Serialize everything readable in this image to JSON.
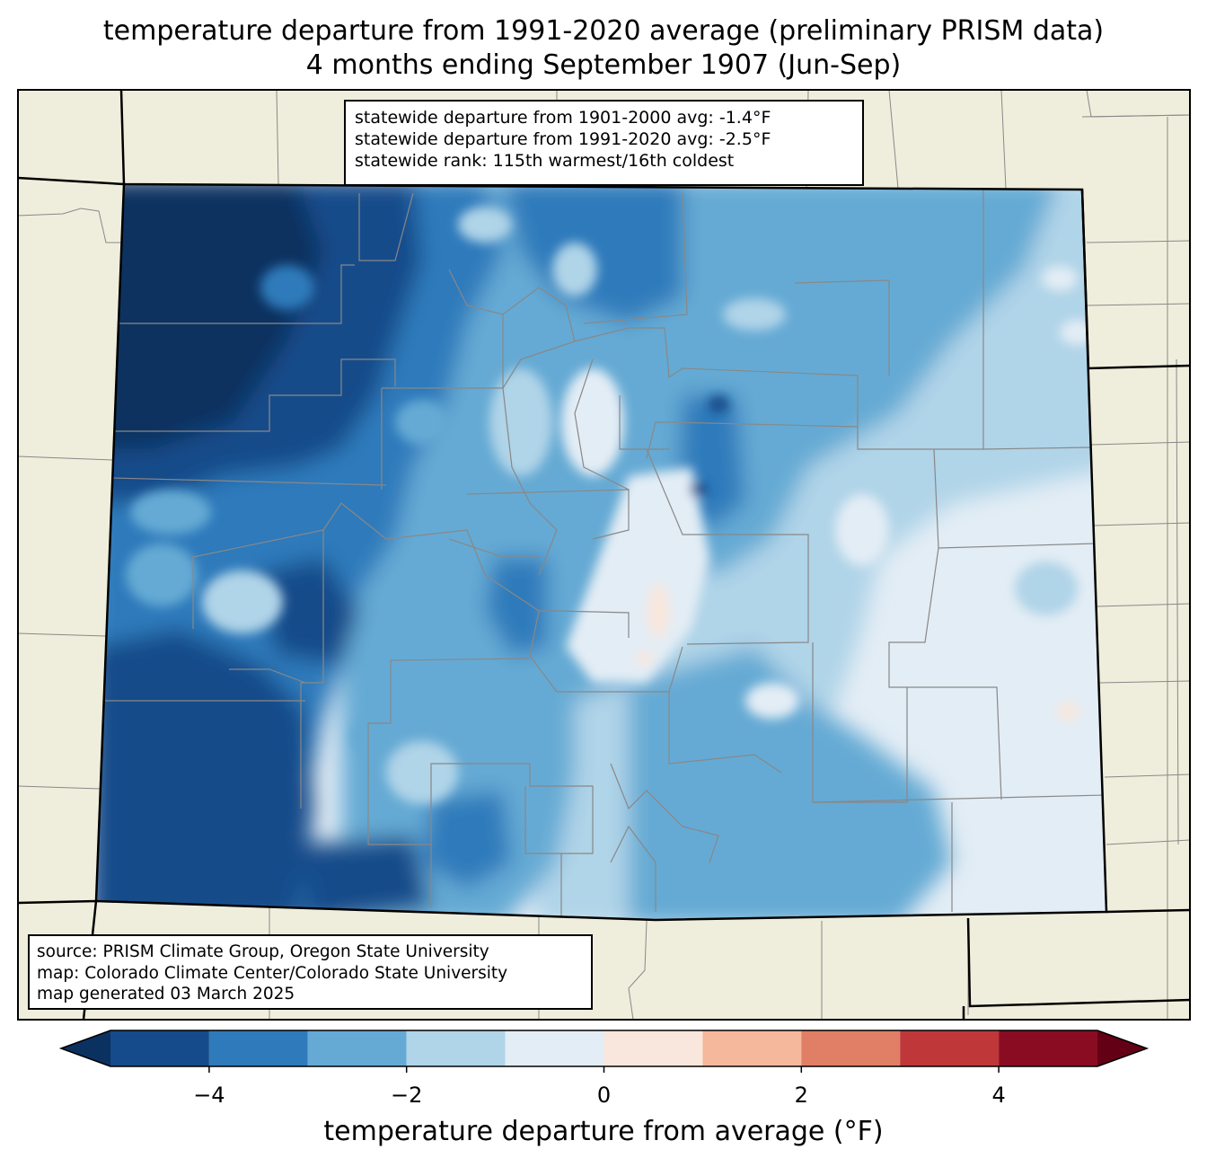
{
  "title": {
    "line1": "temperature departure from 1991-2020 average (preliminary PRISM data)",
    "line2": "4 months ending September 1907 (Jun-Sep)"
  },
  "stats_box": {
    "line1": "statewide departure from 1901-2000 avg: -1.4°F",
    "line2": "statewide departure from 1991-2020 avg: -2.5°F",
    "line3": "statewide rank: 115th warmest/16th coldest"
  },
  "source_box": {
    "line1": "source: PRISM Climate Group, Oregon State University",
    "line2": "map: Colorado Climate Center/Colorado State University",
    "line3": "map generated 03 March 2025"
  },
  "colorbar": {
    "label": "temperature departure from average (°F)",
    "ticks": [
      "−4",
      "−2",
      "0",
      "2",
      "4"
    ],
    "tick_values": [
      -4,
      -2,
      0,
      2,
      4
    ],
    "range": [
      -5,
      5
    ],
    "bins": [
      {
        "from": -5,
        "to": -4,
        "color": "#154b8a"
      },
      {
        "from": -4,
        "to": -3,
        "color": "#2e7abb"
      },
      {
        "from": -3,
        "to": -2,
        "color": "#65aad4"
      },
      {
        "from": -2,
        "to": -1,
        "color": "#b0d4e8"
      },
      {
        "from": -1,
        "to": 0,
        "color": "#e3edf5"
      },
      {
        "from": 0,
        "to": 1,
        "color": "#f9e6dc"
      },
      {
        "from": 1,
        "to": 2,
        "color": "#f6b89c"
      },
      {
        "from": 2,
        "to": 3,
        "color": "#e07e66"
      },
      {
        "from": 3,
        "to": 4,
        "color": "#c0373a"
      },
      {
        "from": 4,
        "to": 5,
        "color": "#8a0c23"
      }
    ],
    "under_color": "#0b3161",
    "over_color": "#640015"
  },
  "colors": {
    "land": "#efeedc",
    "border": "#000000",
    "county": "#888888"
  }
}
